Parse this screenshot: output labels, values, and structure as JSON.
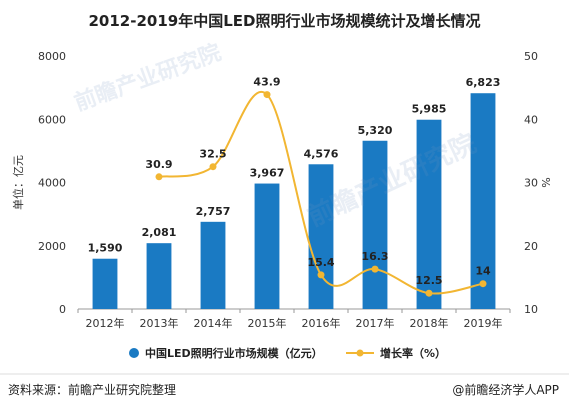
{
  "title": "2012-2019年中国LED照明行业市场规模统计及增长情况",
  "source": "资料来源：前瞻产业研究院整理",
  "brand": "@前瞻经济学人APP",
  "watermark": "前瞻产业研究院",
  "colors": {
    "bar": "#1a7ac3",
    "line": "#f2b632",
    "axis": "#999999",
    "text": "#333333"
  },
  "chart_data": {
    "type": "bar+line",
    "categories": [
      "2012年",
      "2013年",
      "2014年",
      "2015年",
      "2016年",
      "2017年",
      "2018年",
      "2019年"
    ],
    "series": [
      {
        "name": "中国LED照明行业市场规模（亿元）",
        "type": "bar",
        "axis": "left",
        "values": [
          1590,
          2081,
          2757,
          3967,
          4576,
          5320,
          5985,
          6823
        ],
        "labels": [
          "1,590",
          "2,081",
          "2,757",
          "3,967",
          "4,576",
          "5,320",
          "5,985",
          "6,823"
        ]
      },
      {
        "name": "增长率（%）",
        "type": "line",
        "axis": "right",
        "values": [
          null,
          30.9,
          32.5,
          43.9,
          15.4,
          16.3,
          12.5,
          14
        ],
        "labels": [
          "",
          "30.9",
          "32.5",
          "43.9",
          "15.4",
          "16.3",
          "12.5",
          "14"
        ]
      }
    ],
    "y_left": {
      "label": "单位：亿元",
      "ylim": [
        0,
        8000
      ],
      "ticks": [
        "0",
        "2000",
        "4000",
        "6000",
        "8000"
      ]
    },
    "y_right": {
      "label": "%",
      "ylim": [
        10,
        50
      ],
      "ticks": [
        "10",
        "20",
        "30",
        "40",
        "50"
      ]
    },
    "legend": "bottom"
  }
}
